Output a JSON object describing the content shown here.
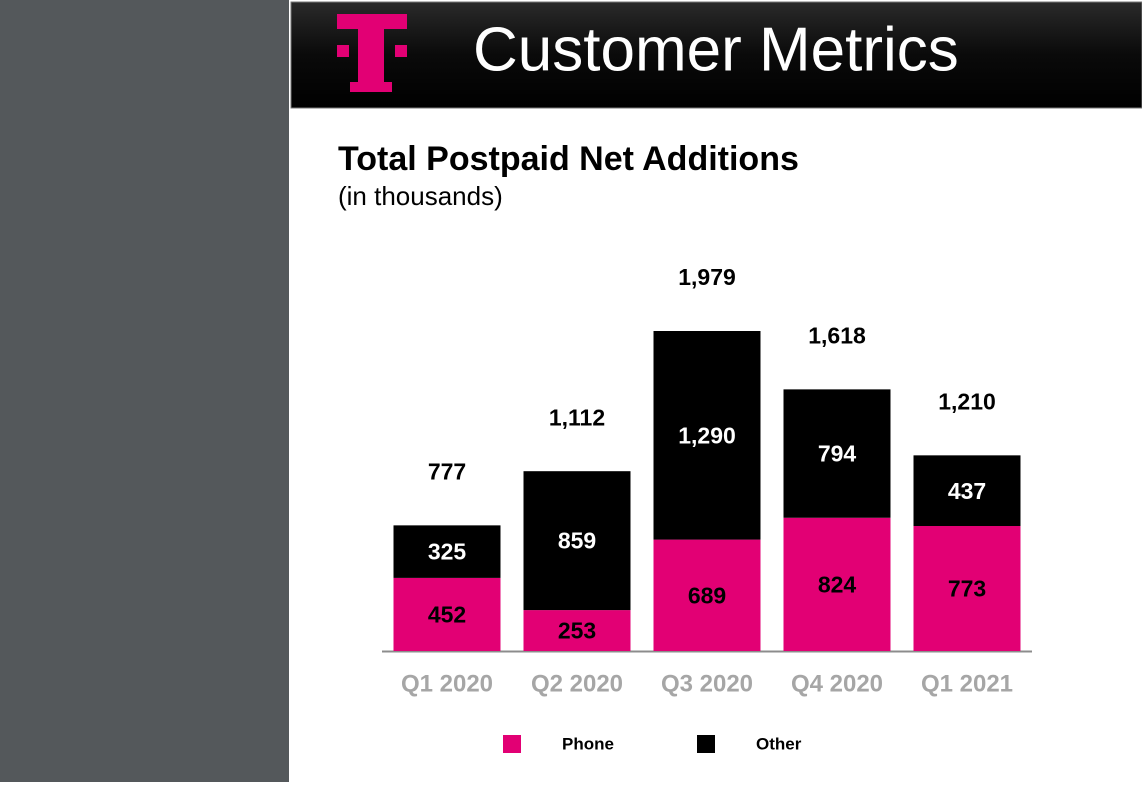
{
  "header": {
    "title": "Customer Metrics"
  },
  "chart_data": {
    "type": "stacked-bar",
    "title": "Total Postpaid Net Additions",
    "subtitle": "(in thousands)",
    "categories": [
      "Q1 2020",
      "Q2 2020",
      "Q3 2020",
      "Q4 2020",
      "Q1 2021"
    ],
    "series": [
      {
        "name": "Phone",
        "color": "#e20074",
        "label_color": "#000000",
        "values": [
          452,
          253,
          689,
          824,
          773
        ]
      },
      {
        "name": "Other",
        "color": "#000000",
        "label_color": "#ffffff",
        "values": [
          325,
          859,
          1290,
          794,
          437
        ],
        "value_labels": [
          "325",
          "859",
          "1,290",
          "794",
          "437"
        ]
      }
    ],
    "totals": [
      777,
      1112,
      1979,
      1618,
      1210
    ],
    "total_labels": [
      "777",
      "1,112",
      "1,979",
      "1,618",
      "1,210"
    ],
    "legend": "bottom"
  }
}
